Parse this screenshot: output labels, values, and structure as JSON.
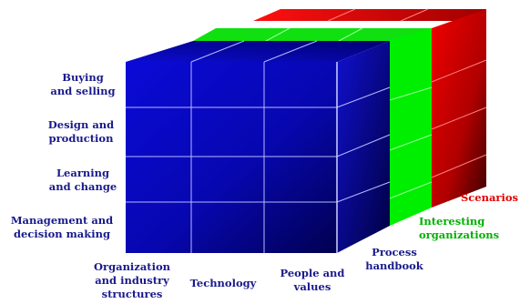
{
  "rows": [
    {
      "label": "Buying\nand selling"
    },
    {
      "label": "Design and\nproduction"
    },
    {
      "label": "Learning\nand change"
    },
    {
      "label": "Management and\ndecision making"
    }
  ],
  "columns": [
    {
      "label": "Organization\nand industry\nstructures"
    },
    {
      "label": "Technology"
    },
    {
      "label": "People and\nvalues"
    }
  ],
  "layers": [
    {
      "label": "Process\nhandbook",
      "color": "#0000c8"
    },
    {
      "label": "Interesting\norganizations",
      "color": "#00e000"
    },
    {
      "label": "Scenarios",
      "color": "#e00000"
    }
  ],
  "colors": {
    "row_text": "#1a1a8c",
    "col_text": "#1a1a8c",
    "process_text": "#1a1a8c",
    "interesting_text": "#00b000",
    "scenarios_text": "#e00000"
  }
}
